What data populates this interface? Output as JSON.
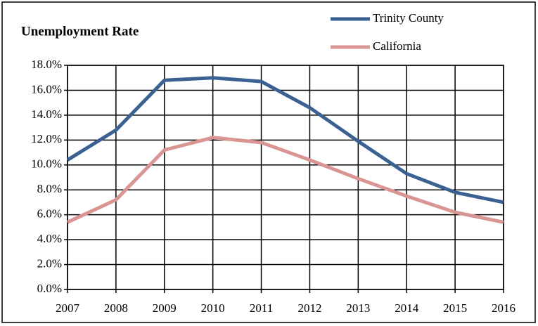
{
  "chart_data": {
    "type": "line",
    "title": "Unemployment Rate",
    "x": [
      2007,
      2008,
      2009,
      2010,
      2011,
      2012,
      2013,
      2014,
      2015,
      2016
    ],
    "xlim": [
      2007,
      2016
    ],
    "xticks": [
      2007,
      2008,
      2009,
      2010,
      2011,
      2012,
      2013,
      2014,
      2015,
      2016
    ],
    "series": [
      {
        "name": "Trinity County",
        "color": "#3b6192",
        "values": [
          10.4,
          12.8,
          16.8,
          17.0,
          16.7,
          14.6,
          11.9,
          9.3,
          7.8,
          7.0
        ]
      },
      {
        "name": "California",
        "color": "#d99594",
        "values": [
          5.4,
          7.2,
          11.2,
          12.2,
          11.8,
          10.4,
          8.9,
          7.5,
          6.2,
          5.4
        ]
      }
    ],
    "ylim": [
      0,
      18
    ],
    "yticks": [
      {
        "value": 0,
        "label": "0.0%"
      },
      {
        "value": 2,
        "label": "2.0%"
      },
      {
        "value": 4,
        "label": "4.0%"
      },
      {
        "value": 6,
        "label": "6.0%"
      },
      {
        "value": 8,
        "label": "8.0%"
      },
      {
        "value": 10,
        "label": "10.0%"
      },
      {
        "value": 12,
        "label": "12.0%"
      },
      {
        "value": 14,
        "label": "14.0%"
      },
      {
        "value": 16,
        "label": "16.0%"
      },
      {
        "value": 18,
        "label": "18.0%"
      }
    ],
    "grid": true,
    "legend": "top-right"
  }
}
